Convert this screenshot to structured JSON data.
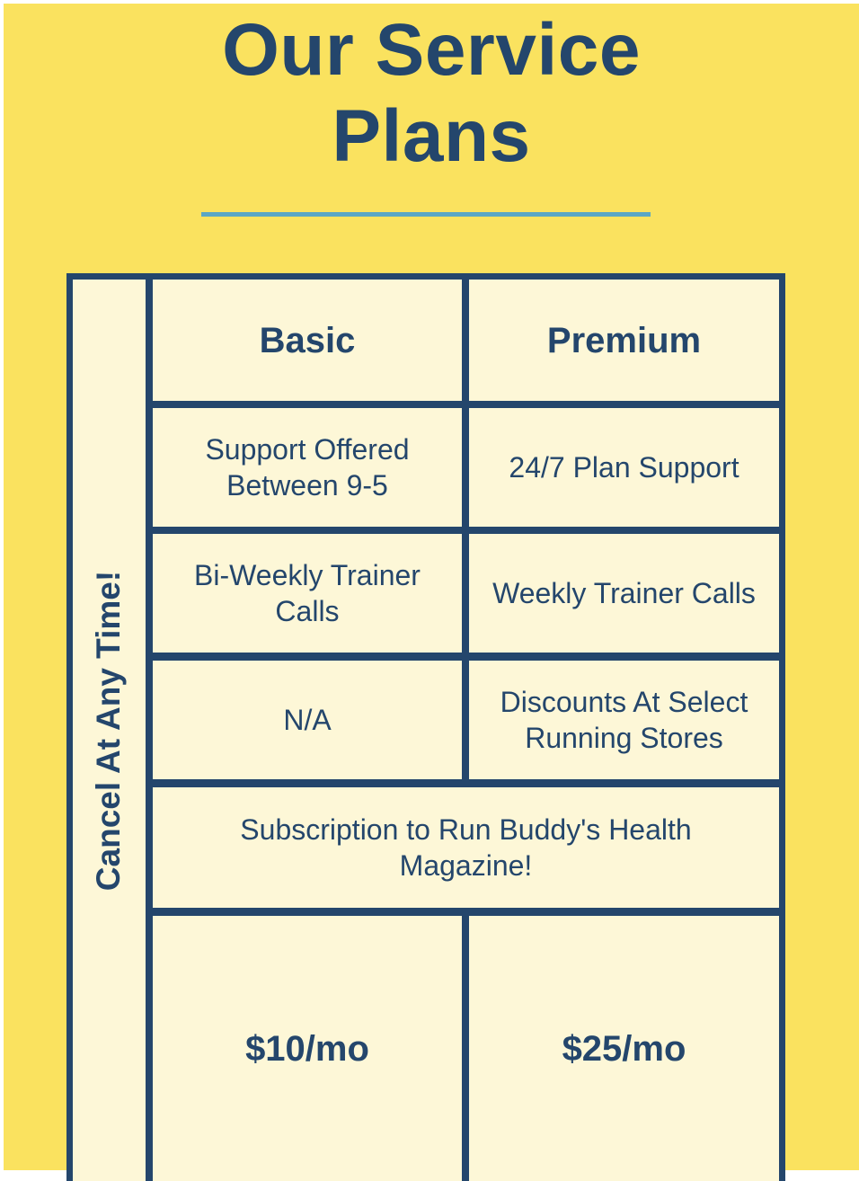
{
  "header": {
    "title_line1": "Our Service",
    "title_line2": "Plans"
  },
  "table": {
    "side_label": "Cancel At Any Time!",
    "columns": [
      "Basic",
      "Premium"
    ],
    "rows": [
      {
        "basic_line1": "Support Offered",
        "basic_line2": "Between 9-5",
        "premium": "24/7 Plan Support"
      },
      {
        "basic_line1": "Bi-Weekly Trainer",
        "basic_line2": "Calls",
        "premium": "Weekly Trainer Calls"
      },
      {
        "basic": "N/A",
        "premium_line1": "Discounts At Select",
        "premium_line2": "Running Stores"
      }
    ],
    "shared_line1": "Subscription to Run Buddy's Health",
    "shared_line2": "Magazine!",
    "prices": [
      "$10/mo",
      "$25/mo"
    ]
  },
  "colors": {
    "background": "#fae25f",
    "text": "#24466c",
    "cell": "#fdf7d7",
    "divider": "#5aa7c5"
  }
}
